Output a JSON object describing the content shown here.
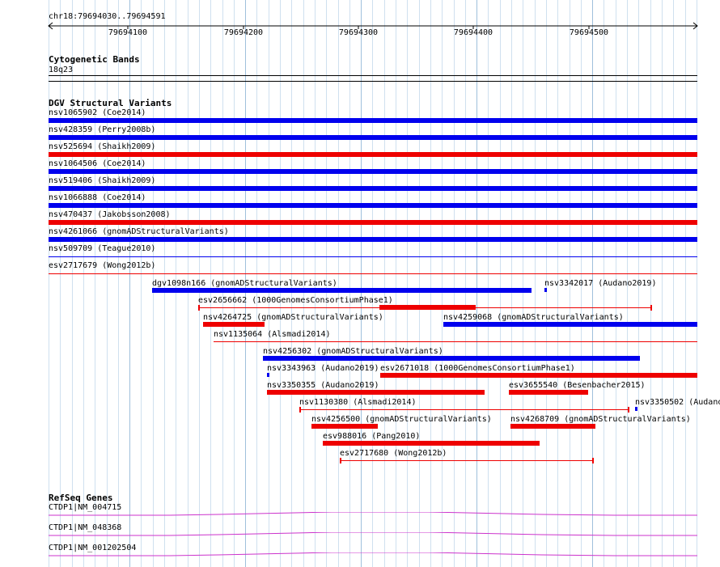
{
  "ruler": {
    "location": "chr18:79694030..79694591",
    "ticks": [
      "79694100",
      "79694200",
      "79694300",
      "79694400",
      "79694500"
    ]
  },
  "cyto": {
    "title": "Cytogenetic Bands",
    "band": "18q23"
  },
  "dgv": {
    "title": "DGV Structural Variants",
    "colors": {
      "gain": "#0000ee",
      "loss": "#ee0000"
    },
    "full_rows": [
      {
        "label": "nsv1065902 (Coe2014)",
        "color": "gain",
        "style": "thick"
      },
      {
        "label": "nsv428359 (Perry2008b)",
        "color": "gain",
        "style": "thick"
      },
      {
        "label": "nsv525694 (Shaikh2009)",
        "color": "loss",
        "style": "thick"
      },
      {
        "label": "nsv1064506 (Coe2014)",
        "color": "gain",
        "style": "thick"
      },
      {
        "label": "nsv519406 (Shaikh2009)",
        "color": "gain",
        "style": "thick"
      },
      {
        "label": "nsv1066888 (Coe2014)",
        "color": "gain",
        "style": "thick"
      },
      {
        "label": "nsv470437 (Jakobsson2008)",
        "color": "loss",
        "style": "thick"
      },
      {
        "label": "nsv4261066 (gnomADStructuralVariants)",
        "color": "gain",
        "style": "thick"
      },
      {
        "label": "nsv509709 (Teague2010)",
        "color": "gain",
        "style": "thin"
      },
      {
        "label": "esv2717679 (Wong2012b)",
        "color": "loss",
        "style": "thin"
      }
    ],
    "packed": [
      {
        "label": "dgv1098n166 (gnomADStructuralVariants)",
        "color": "gain",
        "style": "thick"
      },
      {
        "label": "nsv3342017 (Audano2019)",
        "color": "gain",
        "style": "tiny"
      },
      {
        "label": "esv2656662 (1000GenomesConsortiumPhase1)",
        "color": "loss",
        "style": "line-block"
      },
      {
        "label": "nsv4264725 (gnomADStructuralVariants)",
        "color": "loss",
        "style": "thick"
      },
      {
        "label": "nsv4259068 (gnomADStructuralVariants)",
        "color": "gain",
        "style": "thick"
      },
      {
        "label": "nsv1135064 (Alsmadi2014)",
        "color": "loss",
        "style": "thin"
      },
      {
        "label": "nsv4256302 (gnomADStructuralVariants)",
        "color": "gain",
        "style": "thick"
      },
      {
        "label": "nsv3343963 (Audano2019)",
        "color": "gain",
        "style": "tiny"
      },
      {
        "label": "esv2671018 (1000GenomesConsortiumPhase1)",
        "color": "loss",
        "style": "thick"
      },
      {
        "label": "nsv3350355 (Audano2019)",
        "color": "loss",
        "style": "thick"
      },
      {
        "label": "esv3655540 (Besenbacher2015)",
        "color": "loss",
        "style": "thick"
      },
      {
        "label": "nsv1130380 (Alsmadi2014)",
        "color": "loss",
        "style": "thin"
      },
      {
        "label": "nsv3350502 (Audano",
        "color": "gain",
        "style": "tiny"
      },
      {
        "label": "nsv4256500 (gnomADStructuralVariants)",
        "color": "loss",
        "style": "thick"
      },
      {
        "label": "nsv4268709 (gnomADStructuralVariants)",
        "color": "loss",
        "style": "thick"
      },
      {
        "label": "esv988016 (Pang2010)",
        "color": "loss",
        "style": "thick"
      },
      {
        "label": "esv2717680 (Wong2012b)",
        "color": "loss",
        "style": "thin"
      }
    ]
  },
  "refseq": {
    "title": "RefSeq Genes",
    "color": "#cc33cc",
    "genes": [
      "CTDP1|NM_004715",
      "CTDP1|NM_048368",
      "CTDP1|NM_001202504"
    ]
  }
}
